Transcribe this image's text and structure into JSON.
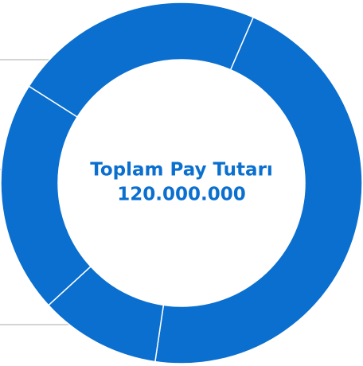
{
  "chart_data": {
    "type": "donut",
    "center_title": "Toplam Pay Tutarı",
    "center_value": "120.000.000",
    "values": [
      55000000,
      13000000,
      25000000,
      27000000
    ],
    "color": "#0a6fcf"
  }
}
